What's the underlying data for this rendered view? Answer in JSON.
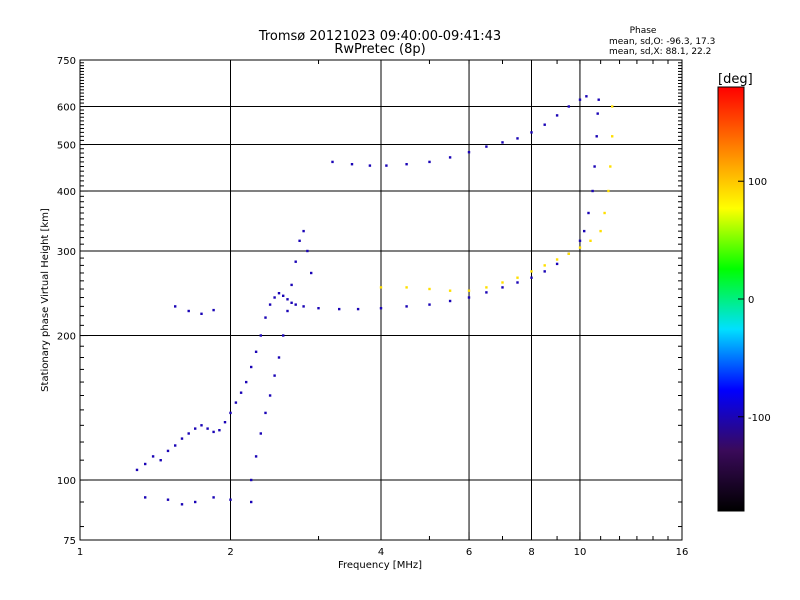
{
  "chart_data": {
    "type": "scatter",
    "title": "Tromsø 20121023 09:40:00-09:41:43",
    "subtitle": "RwPretec (8p)",
    "phase_box": {
      "heading": "Phase",
      "line_o": "mean, sd,O: -96.3, 17.3",
      "line_x": "mean, sd,X:  88.1, 22.2"
    },
    "xlabel": "Frequency [MHz]",
    "ylabel": "Stationary phase Virtual Height [km]",
    "x_scale": "log",
    "y_scale": "log",
    "xlim": [
      1,
      16
    ],
    "ylim": [
      75,
      750
    ],
    "x_ticks": [
      1,
      2,
      4,
      6,
      8,
      10,
      16
    ],
    "x_tick_labels": [
      "1",
      "2",
      "4",
      "6",
      "8",
      "10",
      "16"
    ],
    "y_ticks": [
      75,
      100,
      200,
      300,
      400,
      500,
      600,
      750
    ],
    "y_tick_labels": [
      "75",
      "100",
      "200",
      "300",
      "400",
      "500",
      "600",
      "750"
    ],
    "grid_x": [
      2,
      4,
      6,
      8,
      10
    ],
    "grid_y": [
      100,
      200,
      300,
      400,
      500,
      600
    ],
    "colorbar": {
      "unit_label": "[deg]",
      "range": [
        -180,
        180
      ],
      "ticks": [
        100,
        0,
        -100
      ],
      "tick_labels": [
        "100",
        "0",
        "-100"
      ],
      "colors": [
        "#000000",
        "#3a0a5a",
        "#0000ff",
        "#00e0ff",
        "#00ff00",
        "#ffff00",
        "#ff8000",
        "#ff0000"
      ]
    },
    "series": [
      {
        "phase_deg": -100,
        "trace_points": [
          [
            1.3,
            105
          ],
          [
            1.35,
            108
          ],
          [
            1.4,
            112
          ],
          [
            1.45,
            110
          ],
          [
            1.5,
            115
          ],
          [
            1.55,
            118
          ],
          [
            1.6,
            122
          ],
          [
            1.65,
            125
          ],
          [
            1.7,
            128
          ],
          [
            1.75,
            130
          ],
          [
            1.8,
            128
          ],
          [
            1.85,
            126
          ],
          [
            1.9,
            127
          ],
          [
            1.95,
            132
          ],
          [
            2.0,
            138
          ],
          [
            2.05,
            145
          ],
          [
            2.1,
            152
          ],
          [
            2.15,
            160
          ],
          [
            2.2,
            172
          ],
          [
            2.25,
            185
          ],
          [
            2.3,
            200
          ],
          [
            2.35,
            218
          ],
          [
            2.4,
            232
          ],
          [
            2.45,
            240
          ],
          [
            2.5,
            245
          ],
          [
            2.55,
            242
          ],
          [
            2.6,
            238
          ],
          [
            2.65,
            234
          ],
          [
            2.7,
            232
          ],
          [
            2.8,
            230
          ],
          [
            3.0,
            228
          ],
          [
            3.3,
            227
          ],
          [
            3.6,
            227
          ],
          [
            4.0,
            228
          ],
          [
            4.5,
            230
          ],
          [
            5.0,
            232
          ],
          [
            5.5,
            236
          ],
          [
            6.0,
            240
          ],
          [
            6.5,
            246
          ],
          [
            7.0,
            252
          ],
          [
            7.5,
            258
          ],
          [
            8.0,
            264
          ],
          [
            8.5,
            272
          ],
          [
            9.0,
            282
          ],
          [
            9.5,
            296
          ],
          [
            10.0,
            315
          ],
          [
            10.2,
            330
          ],
          [
            10.4,
            360
          ],
          [
            10.6,
            400
          ],
          [
            10.7,
            450
          ],
          [
            10.8,
            520
          ],
          [
            10.85,
            580
          ],
          [
            10.9,
            620
          ]
        ]
      },
      {
        "phase_deg": -100,
        "trace_points": [
          [
            3.2,
            460
          ],
          [
            3.5,
            455
          ],
          [
            3.8,
            452
          ],
          [
            4.1,
            452
          ],
          [
            4.5,
            455
          ],
          [
            5.0,
            460
          ],
          [
            5.5,
            470
          ],
          [
            6.0,
            482
          ],
          [
            6.5,
            495
          ],
          [
            7.0,
            505
          ],
          [
            7.5,
            515
          ],
          [
            8.0,
            530
          ],
          [
            8.5,
            550
          ],
          [
            9.0,
            575
          ],
          [
            9.5,
            600
          ],
          [
            10.0,
            620
          ],
          [
            10.3,
            630
          ]
        ]
      },
      {
        "phase_deg": 90,
        "trace_points": [
          [
            4.0,
            252
          ],
          [
            4.5,
            252
          ],
          [
            5.0,
            250
          ],
          [
            5.5,
            248
          ],
          [
            6.0,
            248
          ],
          [
            6.5,
            252
          ],
          [
            7.0,
            258
          ],
          [
            7.5,
            264
          ],
          [
            8.0,
            272
          ],
          [
            8.5,
            280
          ],
          [
            9.0,
            288
          ],
          [
            9.5,
            296
          ],
          [
            10.0,
            305
          ],
          [
            10.5,
            315
          ],
          [
            11.0,
            330
          ],
          [
            11.2,
            360
          ],
          [
            11.4,
            400
          ],
          [
            11.5,
            450
          ],
          [
            11.6,
            520
          ],
          [
            11.6,
            600
          ]
        ]
      },
      {
        "phase_deg": -100,
        "trace_points": [
          [
            2.2,
            100
          ],
          [
            2.25,
            112
          ],
          [
            2.3,
            125
          ],
          [
            2.35,
            138
          ],
          [
            2.4,
            150
          ],
          [
            2.45,
            165
          ],
          [
            2.5,
            180
          ],
          [
            2.55,
            200
          ],
          [
            2.6,
            225
          ],
          [
            2.65,
            255
          ],
          [
            2.7,
            285
          ],
          [
            2.75,
            315
          ],
          [
            2.8,
            330
          ],
          [
            2.85,
            300
          ],
          [
            2.9,
            270
          ]
        ]
      },
      {
        "phase_deg": -100,
        "trace_points": [
          [
            1.35,
            92
          ],
          [
            1.5,
            91
          ],
          [
            1.6,
            89
          ],
          [
            1.7,
            90
          ],
          [
            1.85,
            92
          ],
          [
            2.0,
            91
          ],
          [
            2.2,
            90
          ],
          [
            1.55,
            230
          ],
          [
            1.65,
            225
          ],
          [
            1.75,
            222
          ],
          [
            1.85,
            226
          ]
        ]
      }
    ]
  }
}
